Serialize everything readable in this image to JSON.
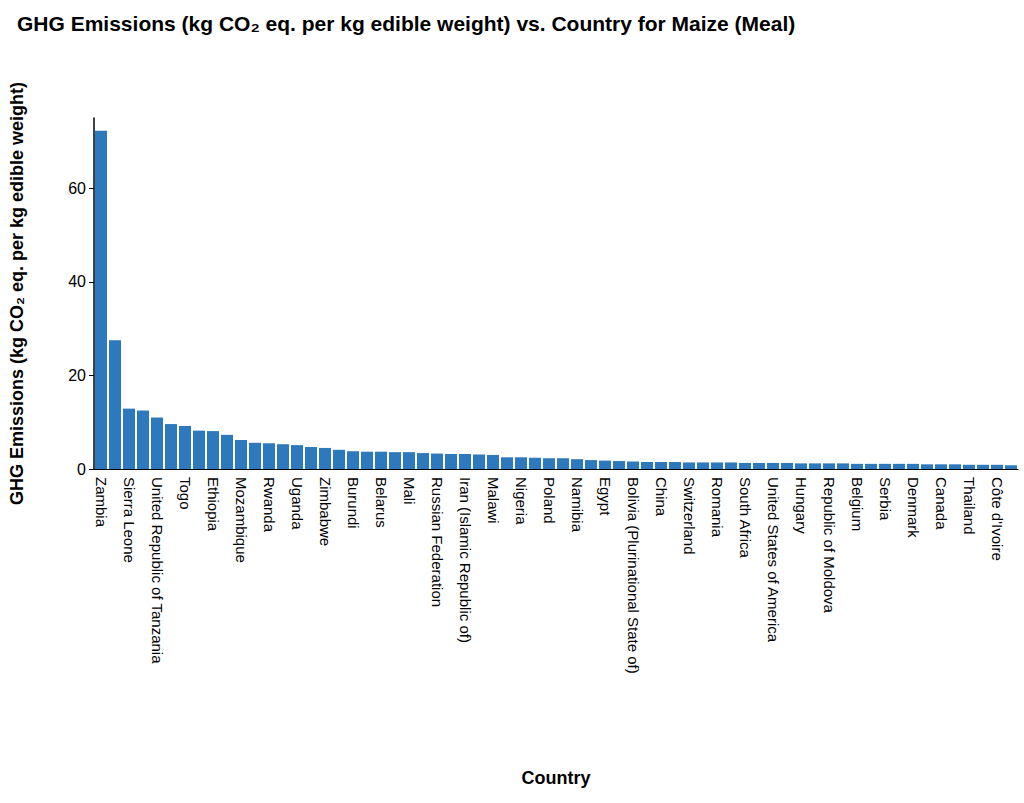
{
  "chart_data": {
    "type": "bar",
    "title": "GHG Emissions (kg CO₂ eq. per kg edible weight) vs. Country for Maize (Meal)",
    "x_label": "Country",
    "y_label": "GHG Emissions (kg CO₂ eq. per kg edible weight)",
    "categories": [
      "Zambia",
      null,
      "Sierra Leone",
      null,
      "United Republic of Tanzania",
      null,
      "Togo",
      null,
      "Ethiopia",
      null,
      "Mozambique",
      null,
      "Rwanda",
      null,
      "Uganda",
      null,
      "Zimbabwe",
      null,
      "Burundi",
      null,
      "Belarus",
      null,
      "Mali",
      null,
      "Russian Federation",
      null,
      "Iran (Islamic Republic of)",
      null,
      "Malawi",
      null,
      "Nigeria",
      null,
      "Poland",
      null,
      "Namibia",
      null,
      "Egypt",
      null,
      "Bolivia (Plurinational State of)",
      null,
      "China",
      null,
      "Switzerland",
      null,
      "Romania",
      null,
      "South Africa",
      null,
      "United States of America",
      null,
      "Hungary",
      null,
      "Republic of Moldova",
      null,
      "Belgium",
      null,
      "Serbia",
      null,
      "Denmark",
      null,
      "Canada",
      null,
      "Thailand",
      null,
      "Côte d'Ivoire",
      null
    ],
    "values": [
      72.3,
      27.5,
      12.9,
      12.5,
      11.0,
      9.6,
      9.2,
      8.2,
      8.1,
      7.3,
      6.2,
      5.6,
      5.5,
      5.3,
      5.1,
      4.7,
      4.5,
      4.1,
      3.8,
      3.7,
      3.7,
      3.6,
      3.6,
      3.4,
      3.3,
      3.2,
      3.2,
      3.1,
      3.0,
      2.5,
      2.5,
      2.4,
      2.3,
      2.3,
      2.1,
      1.9,
      1.8,
      1.7,
      1.6,
      1.5,
      1.5,
      1.5,
      1.4,
      1.4,
      1.4,
      1.4,
      1.3,
      1.3,
      1.3,
      1.3,
      1.2,
      1.2,
      1.2,
      1.2,
      1.1,
      1.1,
      1.1,
      1.1,
      1.1,
      1.0,
      1.0,
      1.0,
      0.9,
      0.9,
      0.9,
      0.8
    ],
    "color": "#2e78bd",
    "ylim": [
      0,
      75
    ],
    "yticks": [
      0,
      20,
      40,
      60
    ],
    "grid": false
  }
}
